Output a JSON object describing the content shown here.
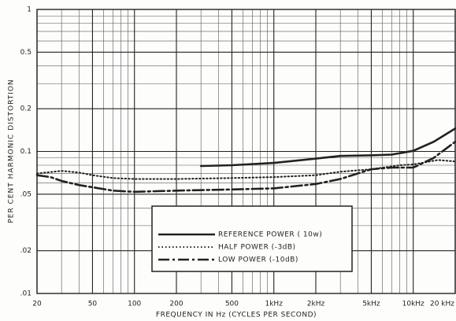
{
  "chart_data": {
    "type": "line",
    "xlabel": "FREQUENCY IN Hz (CYCLES PER SECOND)",
    "ylabel": "PER CENT HARMONIC DISTORTION",
    "xscale": "log",
    "yscale": "log",
    "grid": true,
    "xlim": [
      20,
      20000
    ],
    "ylim": [
      0.01,
      1
    ],
    "xticks": [
      20,
      50,
      100,
      200,
      500,
      {
        "value": 1000,
        "label": "1kHz"
      },
      {
        "value": 2000,
        "label": "2kHz"
      },
      {
        "value": 5000,
        "label": "5kHz"
      },
      {
        "value": 10000,
        "label": "10kHz"
      },
      {
        "value": 20000,
        "label": "20 kHz"
      }
    ],
    "yticks": [
      1,
      0.5,
      0.2,
      0.1,
      {
        "value": 0.05,
        "label": ".05"
      },
      {
        "value": 0.02,
        "label": ".02"
      },
      {
        "value": 0.01,
        "label": ".01"
      }
    ],
    "x_minor_grid": [
      30,
      40,
      60,
      70,
      80,
      90,
      300,
      400,
      600,
      700,
      800,
      900,
      3000,
      4000,
      6000,
      7000,
      8000,
      9000
    ],
    "y_minor_grid": [
      0.9,
      0.8,
      0.7,
      0.6,
      0.4,
      0.3,
      0.09,
      0.08,
      0.07,
      0.06,
      0.04,
      0.03
    ],
    "legend": "lower-center",
    "series": [
      {
        "name": "REFERENCE POWER ( 10w)",
        "color": "#222222",
        "line_style": "solid",
        "x": [
          300,
          500,
          1000,
          2000,
          3000,
          5000,
          7000,
          10000,
          14000,
          20000
        ],
        "values": [
          0.079,
          0.08,
          0.083,
          0.089,
          0.093,
          0.094,
          0.095,
          0.101,
          0.117,
          0.145
        ]
      },
      {
        "name": "HALF POWER (-3dB)",
        "color": "#222222",
        "line_style": "dotted",
        "x": [
          20,
          30,
          40,
          50,
          70,
          100,
          200,
          500,
          1000,
          2000,
          3000,
          5000,
          8000,
          10000,
          15000,
          20000
        ],
        "values": [
          0.07,
          0.073,
          0.071,
          0.068,
          0.065,
          0.064,
          0.064,
          0.065,
          0.066,
          0.068,
          0.072,
          0.075,
          0.08,
          0.081,
          0.087,
          0.085
        ]
      },
      {
        "name": "LOW POWER (-10dB)",
        "color": "#222222",
        "line_style": "dashdot",
        "x": [
          20,
          25,
          30,
          40,
          50,
          70,
          100,
          200,
          500,
          1000,
          2000,
          3000,
          5000,
          7000,
          10000,
          14000,
          20000
        ],
        "values": [
          0.068,
          0.066,
          0.062,
          0.058,
          0.056,
          0.053,
          0.052,
          0.053,
          0.054,
          0.055,
          0.059,
          0.064,
          0.075,
          0.077,
          0.077,
          0.09,
          0.117
        ]
      }
    ]
  }
}
